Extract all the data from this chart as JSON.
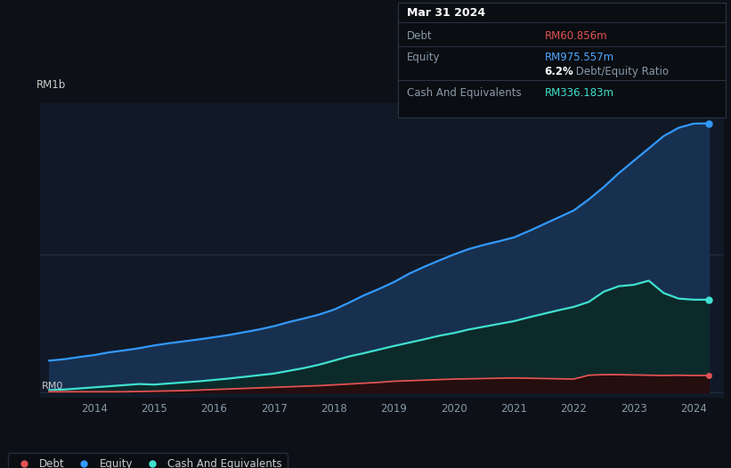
{
  "background_color": "#0d1117",
  "plot_bg_color": "#111927",
  "title_box": {
    "date": "Mar 31 2024",
    "debt_label": "Debt",
    "debt_value": "RM60.856m",
    "debt_color": "#e05252",
    "equity_label": "Equity",
    "equity_value": "RM975.557m",
    "equity_color": "#4da6ff",
    "ratio_bold": "6.2%",
    "ratio_text": " Debt/Equity Ratio",
    "cash_label": "Cash And Equivalents",
    "cash_value": "RM336.183m",
    "cash_color": "#40e0d0"
  },
  "ylabel_text": "RM1b",
  "rm0_label": "RM0",
  "grid_color": "#263545",
  "years": [
    2013.25,
    2013.5,
    2013.75,
    2014.0,
    2014.25,
    2014.5,
    2014.75,
    2015.0,
    2015.25,
    2015.5,
    2015.75,
    2016.0,
    2016.25,
    2016.5,
    2016.75,
    2017.0,
    2017.25,
    2017.5,
    2017.75,
    2018.0,
    2018.25,
    2018.5,
    2018.75,
    2019.0,
    2019.25,
    2019.5,
    2019.75,
    2020.0,
    2020.25,
    2020.5,
    2020.75,
    2021.0,
    2021.25,
    2021.5,
    2021.75,
    2022.0,
    2022.25,
    2022.5,
    2022.75,
    2023.0,
    2023.25,
    2023.5,
    2023.75,
    2024.0,
    2024.25
  ],
  "equity": [
    115,
    120,
    128,
    135,
    145,
    152,
    160,
    170,
    178,
    185,
    192,
    200,
    208,
    218,
    228,
    240,
    255,
    268,
    282,
    300,
    325,
    352,
    375,
    400,
    430,
    455,
    478,
    500,
    520,
    535,
    548,
    562,
    585,
    610,
    635,
    660,
    700,
    745,
    795,
    840,
    885,
    930,
    960,
    975,
    976
  ],
  "cash": [
    8,
    10,
    14,
    18,
    22,
    26,
    30,
    28,
    32,
    36,
    40,
    45,
    50,
    56,
    62,
    68,
    78,
    88,
    100,
    115,
    130,
    142,
    155,
    168,
    180,
    192,
    205,
    215,
    228,
    238,
    248,
    258,
    272,
    285,
    298,
    310,
    328,
    365,
    385,
    390,
    405,
    360,
    340,
    336,
    336
  ],
  "debt": [
    2,
    2,
    2,
    2,
    2,
    2,
    3,
    4,
    5,
    6,
    8,
    10,
    12,
    14,
    16,
    18,
    20,
    22,
    24,
    27,
    30,
    33,
    36,
    40,
    42,
    44,
    46,
    48,
    49,
    50,
    51,
    52,
    51,
    50,
    49,
    48,
    62,
    64,
    64,
    63,
    62,
    61,
    62,
    61,
    61
  ],
  "equity_color": "#3399ff",
  "equity_fill": "#183050",
  "cash_color": "#40e0d0",
  "cash_fill": "#0d2a2a",
  "debt_color": "#e05252",
  "debt_fill": "#2a0808",
  "x_ticks": [
    2014,
    2015,
    2016,
    2017,
    2018,
    2019,
    2020,
    2021,
    2022,
    2023,
    2024
  ],
  "ylim": [
    -20,
    1050
  ],
  "xlim": [
    2013.1,
    2024.5
  ],
  "legend_items": [
    {
      "label": "Debt",
      "color": "#e05252"
    },
    {
      "label": "Equity",
      "color": "#3399ff"
    },
    {
      "label": "Cash And Equivalents",
      "color": "#40e0d0"
    }
  ]
}
